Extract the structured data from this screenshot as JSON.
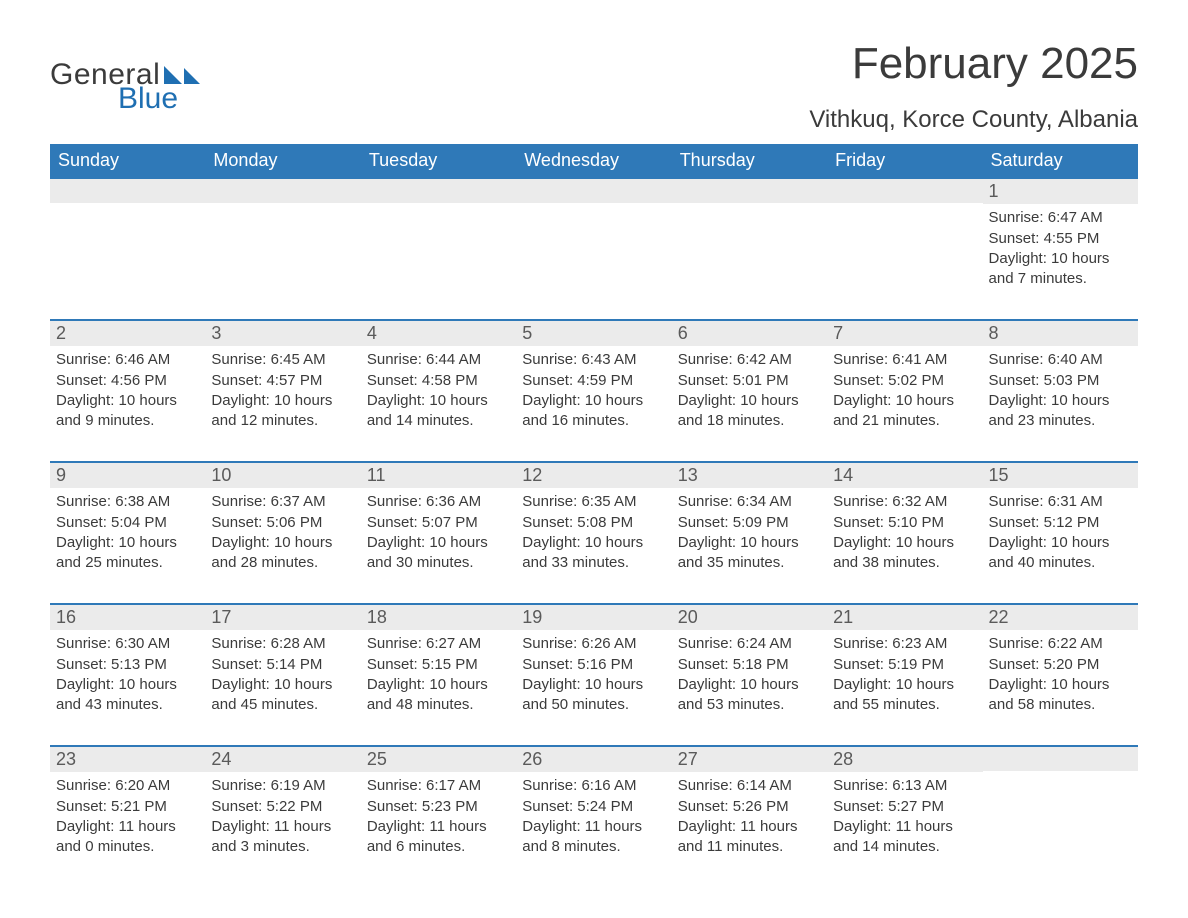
{
  "logo": {
    "general": "General",
    "blue": "Blue"
  },
  "title": "February 2025",
  "location": "Vithkuq, Korce County, Albania",
  "weekdays": [
    "Sunday",
    "Monday",
    "Tuesday",
    "Wednesday",
    "Thursday",
    "Friday",
    "Saturday"
  ],
  "style": {
    "header_bg": "#2f79b8",
    "header_fg": "#ffffff",
    "row_separator_color": "#2f79b8",
    "daynum_bg": "#ebebeb",
    "daynum_fg": "#5a5a5a",
    "body_fg": "#3b3b3b",
    "page_bg": "#ffffff",
    "month_title_fontsize_pt": 33,
    "location_fontsize_pt": 18,
    "weekday_fontsize_pt": 14,
    "daynum_fontsize_pt": 14,
    "body_fontsize_pt": 11,
    "logo_blue_color": "#1f6fb2"
  },
  "weeks": [
    [
      {
        "day": "",
        "sunrise": "",
        "sunset": "",
        "daylight": ""
      },
      {
        "day": "",
        "sunrise": "",
        "sunset": "",
        "daylight": ""
      },
      {
        "day": "",
        "sunrise": "",
        "sunset": "",
        "daylight": ""
      },
      {
        "day": "",
        "sunrise": "",
        "sunset": "",
        "daylight": ""
      },
      {
        "day": "",
        "sunrise": "",
        "sunset": "",
        "daylight": ""
      },
      {
        "day": "",
        "sunrise": "",
        "sunset": "",
        "daylight": ""
      },
      {
        "day": "1",
        "sunrise": "Sunrise: 6:47 AM",
        "sunset": "Sunset: 4:55 PM",
        "daylight": "Daylight: 10 hours and 7 minutes."
      }
    ],
    [
      {
        "day": "2",
        "sunrise": "Sunrise: 6:46 AM",
        "sunset": "Sunset: 4:56 PM",
        "daylight": "Daylight: 10 hours and 9 minutes."
      },
      {
        "day": "3",
        "sunrise": "Sunrise: 6:45 AM",
        "sunset": "Sunset: 4:57 PM",
        "daylight": "Daylight: 10 hours and 12 minutes."
      },
      {
        "day": "4",
        "sunrise": "Sunrise: 6:44 AM",
        "sunset": "Sunset: 4:58 PM",
        "daylight": "Daylight: 10 hours and 14 minutes."
      },
      {
        "day": "5",
        "sunrise": "Sunrise: 6:43 AM",
        "sunset": "Sunset: 4:59 PM",
        "daylight": "Daylight: 10 hours and 16 minutes."
      },
      {
        "day": "6",
        "sunrise": "Sunrise: 6:42 AM",
        "sunset": "Sunset: 5:01 PM",
        "daylight": "Daylight: 10 hours and 18 minutes."
      },
      {
        "day": "7",
        "sunrise": "Sunrise: 6:41 AM",
        "sunset": "Sunset: 5:02 PM",
        "daylight": "Daylight: 10 hours and 21 minutes."
      },
      {
        "day": "8",
        "sunrise": "Sunrise: 6:40 AM",
        "sunset": "Sunset: 5:03 PM",
        "daylight": "Daylight: 10 hours and 23 minutes."
      }
    ],
    [
      {
        "day": "9",
        "sunrise": "Sunrise: 6:38 AM",
        "sunset": "Sunset: 5:04 PM",
        "daylight": "Daylight: 10 hours and 25 minutes."
      },
      {
        "day": "10",
        "sunrise": "Sunrise: 6:37 AM",
        "sunset": "Sunset: 5:06 PM",
        "daylight": "Daylight: 10 hours and 28 minutes."
      },
      {
        "day": "11",
        "sunrise": "Sunrise: 6:36 AM",
        "sunset": "Sunset: 5:07 PM",
        "daylight": "Daylight: 10 hours and 30 minutes."
      },
      {
        "day": "12",
        "sunrise": "Sunrise: 6:35 AM",
        "sunset": "Sunset: 5:08 PM",
        "daylight": "Daylight: 10 hours and 33 minutes."
      },
      {
        "day": "13",
        "sunrise": "Sunrise: 6:34 AM",
        "sunset": "Sunset: 5:09 PM",
        "daylight": "Daylight: 10 hours and 35 minutes."
      },
      {
        "day": "14",
        "sunrise": "Sunrise: 6:32 AM",
        "sunset": "Sunset: 5:10 PM",
        "daylight": "Daylight: 10 hours and 38 minutes."
      },
      {
        "day": "15",
        "sunrise": "Sunrise: 6:31 AM",
        "sunset": "Sunset: 5:12 PM",
        "daylight": "Daylight: 10 hours and 40 minutes."
      }
    ],
    [
      {
        "day": "16",
        "sunrise": "Sunrise: 6:30 AM",
        "sunset": "Sunset: 5:13 PM",
        "daylight": "Daylight: 10 hours and 43 minutes."
      },
      {
        "day": "17",
        "sunrise": "Sunrise: 6:28 AM",
        "sunset": "Sunset: 5:14 PM",
        "daylight": "Daylight: 10 hours and 45 minutes."
      },
      {
        "day": "18",
        "sunrise": "Sunrise: 6:27 AM",
        "sunset": "Sunset: 5:15 PM",
        "daylight": "Daylight: 10 hours and 48 minutes."
      },
      {
        "day": "19",
        "sunrise": "Sunrise: 6:26 AM",
        "sunset": "Sunset: 5:16 PM",
        "daylight": "Daylight: 10 hours and 50 minutes."
      },
      {
        "day": "20",
        "sunrise": "Sunrise: 6:24 AM",
        "sunset": "Sunset: 5:18 PM",
        "daylight": "Daylight: 10 hours and 53 minutes."
      },
      {
        "day": "21",
        "sunrise": "Sunrise: 6:23 AM",
        "sunset": "Sunset: 5:19 PM",
        "daylight": "Daylight: 10 hours and 55 minutes."
      },
      {
        "day": "22",
        "sunrise": "Sunrise: 6:22 AM",
        "sunset": "Sunset: 5:20 PM",
        "daylight": "Daylight: 10 hours and 58 minutes."
      }
    ],
    [
      {
        "day": "23",
        "sunrise": "Sunrise: 6:20 AM",
        "sunset": "Sunset: 5:21 PM",
        "daylight": "Daylight: 11 hours and 0 minutes."
      },
      {
        "day": "24",
        "sunrise": "Sunrise: 6:19 AM",
        "sunset": "Sunset: 5:22 PM",
        "daylight": "Daylight: 11 hours and 3 minutes."
      },
      {
        "day": "25",
        "sunrise": "Sunrise: 6:17 AM",
        "sunset": "Sunset: 5:23 PM",
        "daylight": "Daylight: 11 hours and 6 minutes."
      },
      {
        "day": "26",
        "sunrise": "Sunrise: 6:16 AM",
        "sunset": "Sunset: 5:24 PM",
        "daylight": "Daylight: 11 hours and 8 minutes."
      },
      {
        "day": "27",
        "sunrise": "Sunrise: 6:14 AM",
        "sunset": "Sunset: 5:26 PM",
        "daylight": "Daylight: 11 hours and 11 minutes."
      },
      {
        "day": "28",
        "sunrise": "Sunrise: 6:13 AM",
        "sunset": "Sunset: 5:27 PM",
        "daylight": "Daylight: 11 hours and 14 minutes."
      },
      {
        "day": "",
        "sunrise": "",
        "sunset": "",
        "daylight": ""
      }
    ]
  ]
}
